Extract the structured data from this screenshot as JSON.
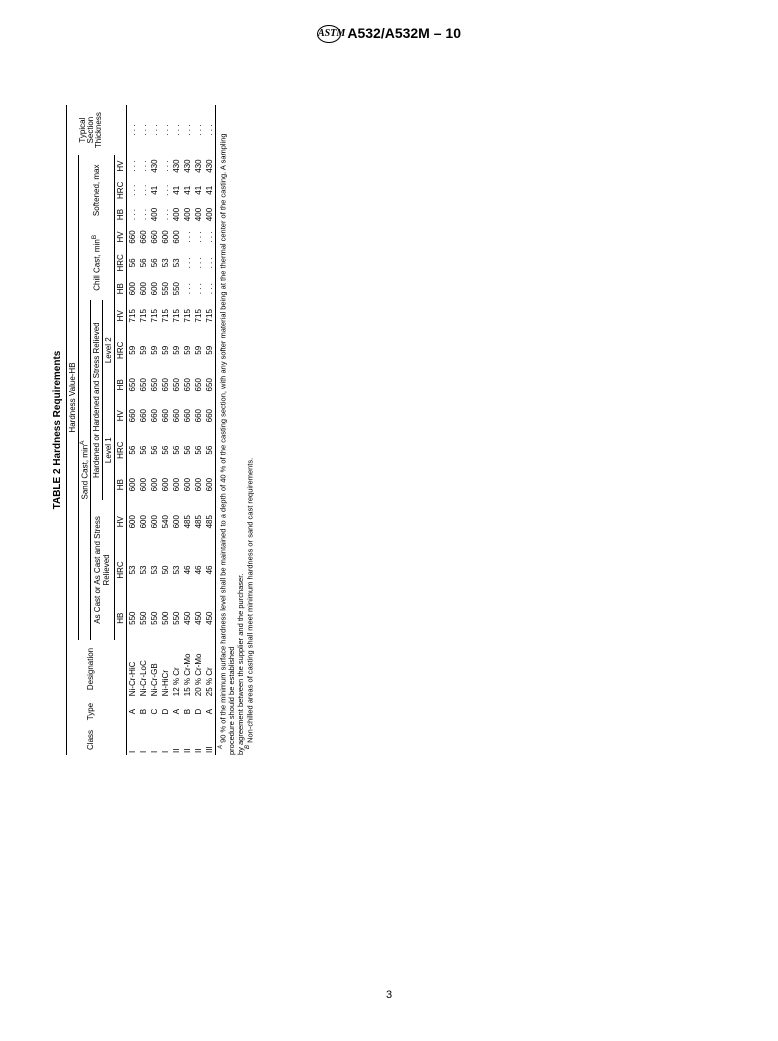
{
  "header": {
    "designation": "A532/A532M – 10"
  },
  "page_number": "3",
  "table": {
    "title": "TABLE 2 Hardness Requirements",
    "super_header": "Hardness Value-HB",
    "group_sand": "Sand Cast, min",
    "group_sand_sup": "A",
    "group_chill": "Chill Cast, min",
    "group_chill_sup": "B",
    "group_soft": "Softened, max",
    "sub_ascast": "As Cast or As Cast and Stress Relieved",
    "sub_harden": "Hardened or Hardened and Stress Relieved",
    "level1": "Level 1",
    "level2": "Level 2",
    "col": {
      "class": "Class",
      "type": "Type",
      "desig": "Designation",
      "hb": "HB",
      "hrc": "HRC",
      "hv": "HV",
      "sect": "Typical Section Thickness"
    },
    "rows": [
      {
        "c": "I",
        "t": "A",
        "d": "Ni-Cr-HiC",
        "a_hb": "550",
        "a_hrc": "53",
        "a_hv": "600",
        "l1_hb": "600",
        "l1_hrc": "56",
        "l1_hv": "660",
        "l2_hb": "650",
        "l2_hrc": "59",
        "l2_hv": "715",
        "cc_hb": "600",
        "cc_hrc": "56",
        "cc_hv": "660",
        "s_hb": ". . .",
        "s_hrc": ". . .",
        "s_hv": ". . .",
        "st": ". . ."
      },
      {
        "c": "I",
        "t": "B",
        "d": "Ni-Cr-LoC",
        "a_hb": "550",
        "a_hrc": "53",
        "a_hv": "600",
        "l1_hb": "600",
        "l1_hrc": "56",
        "l1_hv": "660",
        "l2_hb": "650",
        "l2_hrc": "59",
        "l2_hv": "715",
        "cc_hb": "600",
        "cc_hrc": "56",
        "cc_hv": "660",
        "s_hb": ". . .",
        "s_hrc": ". . .",
        "s_hv": ". . .",
        "st": ". . ."
      },
      {
        "c": "I",
        "t": "C",
        "d": "Ni-Cr-GB",
        "a_hb": "550",
        "a_hrc": "53",
        "a_hv": "600",
        "l1_hb": "600",
        "l1_hrc": "56",
        "l1_hv": "660",
        "l2_hb": "650",
        "l2_hrc": "59",
        "l2_hv": "715",
        "cc_hb": "600",
        "cc_hrc": "56",
        "cc_hv": "660",
        "s_hb": "400",
        "s_hrc": "41",
        "s_hv": "430",
        "st": ". . ."
      },
      {
        "c": "I",
        "t": "D",
        "d": "Ni-HiCr",
        "a_hb": "500",
        "a_hrc": "50",
        "a_hv": "540",
        "l1_hb": "600",
        "l1_hrc": "56",
        "l1_hv": "660",
        "l2_hb": "650",
        "l2_hrc": "59",
        "l2_hv": "715",
        "cc_hb": "550",
        "cc_hrc": "53",
        "cc_hv": "600",
        "s_hb": ". . .",
        "s_hrc": ". . .",
        "s_hv": ". . .",
        "st": ". . ."
      },
      {
        "c": "II",
        "t": "A",
        "d": "12 % Cr",
        "a_hb": "550",
        "a_hrc": "53",
        "a_hv": "600",
        "l1_hb": "600",
        "l1_hrc": "56",
        "l1_hv": "660",
        "l2_hb": "650",
        "l2_hrc": "59",
        "l2_hv": "715",
        "cc_hb": "550",
        "cc_hrc": "53",
        "cc_hv": "600",
        "s_hb": "400",
        "s_hrc": "41",
        "s_hv": "430",
        "st": ". . ."
      },
      {
        "c": "II",
        "t": "B",
        "d": "15 % Cr-Mo",
        "a_hb": "450",
        "a_hrc": "46",
        "a_hv": "485",
        "l1_hb": "600",
        "l1_hrc": "56",
        "l1_hv": "660",
        "l2_hb": "650",
        "l2_hrc": "59",
        "l2_hv": "715",
        "cc_hb": ". . .",
        "cc_hrc": ". . .",
        "cc_hv": ". . .",
        "s_hb": "400",
        "s_hrc": "41",
        "s_hv": "430",
        "st": ". . ."
      },
      {
        "c": "II",
        "t": "D",
        "d": "20 % Cr-Mo",
        "a_hb": "450",
        "a_hrc": "46",
        "a_hv": "485",
        "l1_hb": "600",
        "l1_hrc": "56",
        "l1_hv": "660",
        "l2_hb": "650",
        "l2_hrc": "59",
        "l2_hv": "715",
        "cc_hb": ". . .",
        "cc_hrc": ". . .",
        "cc_hv": ". . .",
        "s_hb": "400",
        "s_hrc": "41",
        "s_hv": "430",
        "st": ". . ."
      },
      {
        "c": "III",
        "t": "A",
        "d": "25 % Cr",
        "a_hb": "450",
        "a_hrc": "46",
        "a_hv": "485",
        "l1_hb": "600",
        "l1_hrc": "56",
        "l1_hv": "660",
        "l2_hb": "650",
        "l2_hrc": "59",
        "l2_hv": "715",
        "cc_hb": ". . .",
        "cc_hrc": ". . .",
        "cc_hv": ". . .",
        "s_hb": "400",
        "s_hrc": "41",
        "s_hv": "430",
        "st": ". . ."
      }
    ]
  },
  "footnotes": {
    "a_sup": "A",
    "a": " 90 % of the minimum surface hardness level shall be maintained to a depth of 40 % of the casting section, with any softer material being at the thermal center of the casting. A sampling procedure should be established",
    "a_cont": "by agreement between the supplier and the purchaser.",
    "b_sup": "B",
    "b": " Non-chilled areas of casting shall meet minimum hardness or sand cast requirements."
  }
}
